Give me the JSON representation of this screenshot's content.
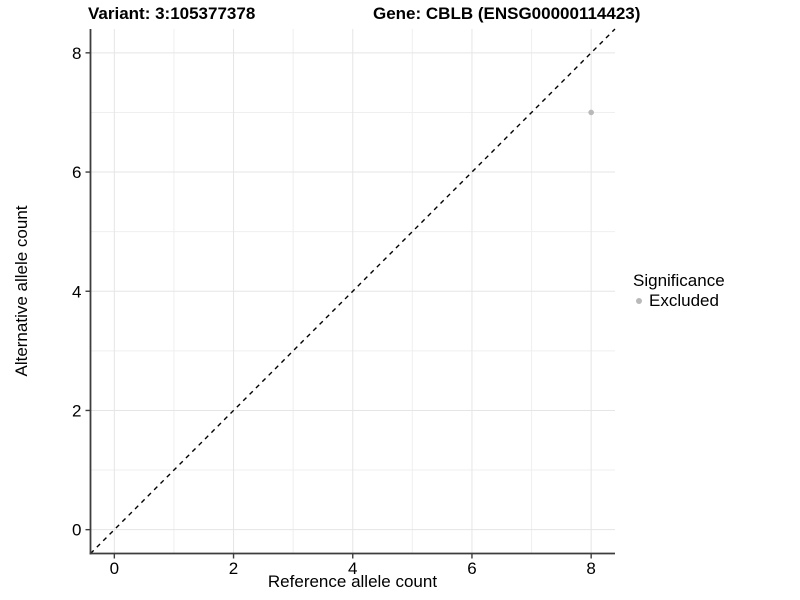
{
  "title": {
    "variant": "Variant: 3:105377378",
    "gene": "Gene: CBLB (ENSG00000114423)"
  },
  "axes": {
    "xlabel": "Reference allele count",
    "ylabel": "Alternative allele count"
  },
  "legend": {
    "title": "Significance",
    "items": [
      {
        "label": "Excluded",
        "color": "#b9b9b9"
      }
    ]
  },
  "colors": {
    "background": "#ffffff",
    "grid_major": "#e5e5e5",
    "grid_minor": "#efefef",
    "axis_line": "#3d3d3d",
    "tick_mark": "#3d3d3d",
    "tick_text": "#000000",
    "identity_line": "#000000",
    "point": "#b9b9b9"
  },
  "chart_data": {
    "type": "scatter",
    "title_left": "Variant: 3:105377378",
    "title_right": "Gene: CBLB (ENSG00000114423)",
    "xlabel": "Reference allele count",
    "ylabel": "Alternative allele count",
    "xlim": [
      -0.4,
      8.4
    ],
    "ylim": [
      -0.4,
      8.4
    ],
    "xticks": [
      0,
      2,
      4,
      6,
      8
    ],
    "yticks": [
      0,
      2,
      4,
      6,
      8
    ],
    "x_minor_gridlines": [
      1,
      3,
      5,
      7
    ],
    "y_minor_gridlines": [
      1,
      3,
      5,
      7
    ],
    "grid": true,
    "legend_position": "right",
    "identity_line": {
      "style": "dashed",
      "x1": -0.4,
      "y1": -0.4,
      "x2": 8.4,
      "y2": 8.4
    },
    "series": [
      {
        "name": "Excluded",
        "color": "#b9b9b9",
        "points": [
          {
            "x": 8,
            "y": 7
          }
        ]
      }
    ]
  }
}
